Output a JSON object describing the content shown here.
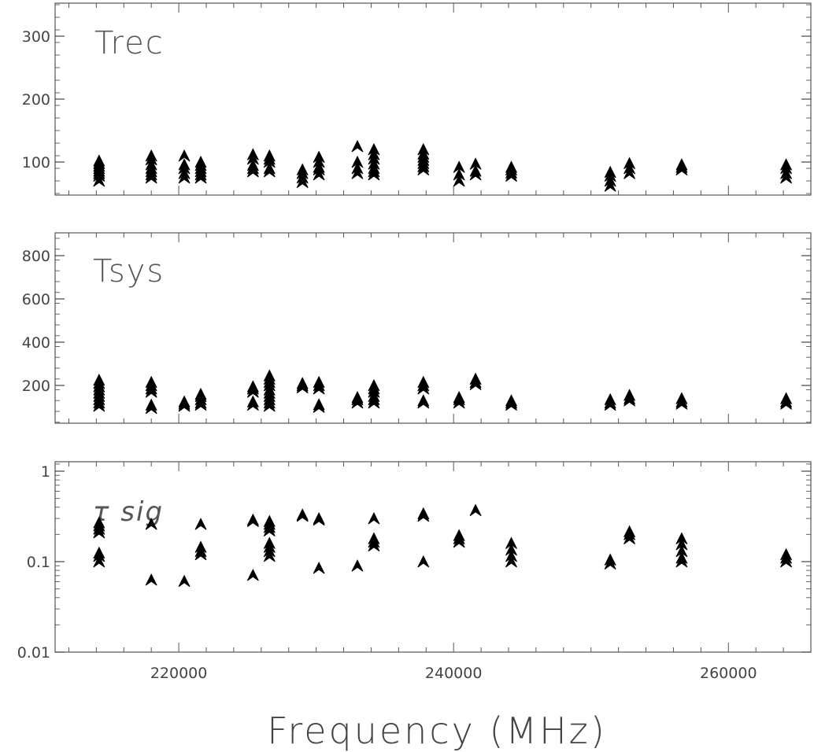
{
  "figure": {
    "xlabel": "Frequency (MHz)"
  },
  "chart_data": [
    {
      "type": "scatter",
      "title": "Trec",
      "xlabel": "Frequency (MHz)",
      "ylabel": "",
      "xlim": [
        211000,
        266000
      ],
      "ylim": [
        50,
        350
      ],
      "scale": "linear",
      "xticks": [
        220000,
        240000,
        260000
      ],
      "xtick_labels": [
        "220000",
        "240000",
        "260000"
      ],
      "yticks": [
        100,
        200,
        300
      ],
      "ytick_labels": [
        "100",
        "200",
        "300"
      ],
      "grid": false,
      "points": [
        [
          214200,
          70
        ],
        [
          214200,
          78
        ],
        [
          214200,
          82
        ],
        [
          214200,
          86
        ],
        [
          214200,
          90
        ],
        [
          214200,
          94
        ],
        [
          214200,
          98
        ],
        [
          214200,
          102
        ],
        [
          218000,
          75
        ],
        [
          218000,
          80
        ],
        [
          218000,
          85
        ],
        [
          218000,
          90
        ],
        [
          218000,
          96
        ],
        [
          218000,
          104
        ],
        [
          218000,
          110
        ],
        [
          220400,
          75
        ],
        [
          220400,
          82
        ],
        [
          220400,
          90
        ],
        [
          220400,
          96
        ],
        [
          220400,
          110
        ],
        [
          221600,
          75
        ],
        [
          221600,
          80
        ],
        [
          221600,
          85
        ],
        [
          221600,
          90
        ],
        [
          221600,
          95
        ],
        [
          221600,
          100
        ],
        [
          225400,
          85
        ],
        [
          225400,
          90
        ],
        [
          225400,
          95
        ],
        [
          225400,
          105
        ],
        [
          225400,
          112
        ],
        [
          226600,
          85
        ],
        [
          226600,
          90
        ],
        [
          226600,
          100
        ],
        [
          226600,
          105
        ],
        [
          226600,
          110
        ],
        [
          229000,
          68
        ],
        [
          229000,
          75
        ],
        [
          229000,
          82
        ],
        [
          229000,
          88
        ],
        [
          230200,
          80
        ],
        [
          230200,
          88
        ],
        [
          230200,
          92
        ],
        [
          230200,
          100
        ],
        [
          230200,
          108
        ],
        [
          233000,
          82
        ],
        [
          233000,
          90
        ],
        [
          233000,
          100
        ],
        [
          233000,
          125
        ],
        [
          234200,
          80
        ],
        [
          234200,
          85
        ],
        [
          234200,
          90
        ],
        [
          234200,
          97
        ],
        [
          234200,
          105
        ],
        [
          234200,
          112
        ],
        [
          234200,
          120
        ],
        [
          237800,
          88
        ],
        [
          237800,
          93
        ],
        [
          237800,
          98
        ],
        [
          237800,
          103
        ],
        [
          237800,
          108
        ],
        [
          237800,
          113
        ],
        [
          237800,
          120
        ],
        [
          240400,
          70
        ],
        [
          240400,
          80
        ],
        [
          240400,
          92
        ],
        [
          241600,
          80
        ],
        [
          241600,
          86
        ],
        [
          241600,
          97
        ],
        [
          244200,
          78
        ],
        [
          244200,
          83
        ],
        [
          244200,
          88
        ],
        [
          244200,
          92
        ],
        [
          251400,
          62
        ],
        [
          251400,
          70
        ],
        [
          251400,
          78
        ],
        [
          251400,
          84
        ],
        [
          252800,
          82
        ],
        [
          252800,
          90
        ],
        [
          252800,
          98
        ],
        [
          256600,
          88
        ],
        [
          256600,
          92
        ],
        [
          256600,
          96
        ],
        [
          264200,
          75
        ],
        [
          264200,
          82
        ],
        [
          264200,
          90
        ],
        [
          264200,
          96
        ]
      ]
    },
    {
      "type": "scatter",
      "title": "Tsys",
      "xlabel": "Frequency (MHz)",
      "ylabel": "",
      "xlim": [
        211000,
        266000
      ],
      "ylim": [
        30,
        900
      ],
      "scale": "linear",
      "xticks": [
        220000,
        240000,
        260000
      ],
      "xtick_labels": [
        "220000",
        "240000",
        "260000"
      ],
      "yticks": [
        200,
        400,
        600,
        800
      ],
      "ytick_labels": [
        "200",
        "400",
        "600",
        "800"
      ],
      "grid": false,
      "points": [
        [
          214200,
          105
        ],
        [
          214200,
          120
        ],
        [
          214200,
          135
        ],
        [
          214200,
          150
        ],
        [
          214200,
          165
        ],
        [
          214200,
          180
        ],
        [
          214200,
          195
        ],
        [
          214200,
          210
        ],
        [
          214200,
          225
        ],
        [
          218000,
          95
        ],
        [
          218000,
          110
        ],
        [
          218000,
          170
        ],
        [
          218000,
          185
        ],
        [
          218000,
          200
        ],
        [
          218000,
          215
        ],
        [
          220400,
          105
        ],
        [
          220400,
          115
        ],
        [
          220400,
          125
        ],
        [
          221600,
          110
        ],
        [
          221600,
          120
        ],
        [
          221600,
          135
        ],
        [
          221600,
          150
        ],
        [
          221600,
          160
        ],
        [
          225400,
          110
        ],
        [
          225400,
          125
        ],
        [
          225400,
          170
        ],
        [
          225400,
          185
        ],
        [
          225400,
          195
        ],
        [
          226600,
          105
        ],
        [
          226600,
          120
        ],
        [
          226600,
          135
        ],
        [
          226600,
          150
        ],
        [
          226600,
          165
        ],
        [
          226600,
          180
        ],
        [
          226600,
          200
        ],
        [
          226600,
          215
        ],
        [
          226600,
          230
        ],
        [
          226600,
          245
        ],
        [
          229000,
          190
        ],
        [
          229000,
          200
        ],
        [
          229000,
          210
        ],
        [
          230200,
          100
        ],
        [
          230200,
          112
        ],
        [
          230200,
          185
        ],
        [
          230200,
          200
        ],
        [
          230200,
          215
        ],
        [
          233000,
          120
        ],
        [
          233000,
          135
        ],
        [
          233000,
          145
        ],
        [
          234200,
          120
        ],
        [
          234200,
          135
        ],
        [
          234200,
          150
        ],
        [
          234200,
          170
        ],
        [
          234200,
          185
        ],
        [
          234200,
          200
        ],
        [
          237800,
          120
        ],
        [
          237800,
          130
        ],
        [
          237800,
          185
        ],
        [
          237800,
          200
        ],
        [
          237800,
          215
        ],
        [
          240400,
          120
        ],
        [
          240400,
          135
        ],
        [
          240400,
          145
        ],
        [
          241600,
          205
        ],
        [
          241600,
          215
        ],
        [
          241600,
          230
        ],
        [
          244200,
          110
        ],
        [
          244200,
          120
        ],
        [
          244200,
          130
        ],
        [
          251400,
          110
        ],
        [
          251400,
          120
        ],
        [
          251400,
          135
        ],
        [
          252800,
          130
        ],
        [
          252800,
          140
        ],
        [
          252800,
          155
        ],
        [
          256600,
          115
        ],
        [
          256600,
          125
        ],
        [
          256600,
          140
        ],
        [
          264200,
          115
        ],
        [
          264200,
          125
        ],
        [
          264200,
          140
        ]
      ]
    },
    {
      "type": "scatter",
      "title": "τ sig",
      "xlabel": "Frequency (MHz)",
      "ylabel": "",
      "xlim": [
        211000,
        266000
      ],
      "ylim": [
        0.01,
        1.3
      ],
      "scale": "log",
      "xticks": [
        220000,
        240000,
        260000
      ],
      "xtick_labels": [
        "220000",
        "240000",
        "260000"
      ],
      "yticks": [
        0.01,
        0.1,
        1
      ],
      "ytick_labels": [
        "0.01",
        "0.1",
        "1"
      ],
      "grid": false,
      "points": [
        [
          214200,
          0.1
        ],
        [
          214200,
          0.115
        ],
        [
          214200,
          0.125
        ],
        [
          214200,
          0.21
        ],
        [
          214200,
          0.23
        ],
        [
          214200,
          0.25
        ],
        [
          214200,
          0.27
        ],
        [
          218000,
          0.063
        ],
        [
          218000,
          0.26
        ],
        [
          220400,
          0.061
        ],
        [
          221600,
          0.12
        ],
        [
          221600,
          0.13
        ],
        [
          221600,
          0.145
        ],
        [
          221600,
          0.26
        ],
        [
          225400,
          0.071
        ],
        [
          225400,
          0.28
        ],
        [
          225400,
          0.29
        ],
        [
          226600,
          0.115
        ],
        [
          226600,
          0.13
        ],
        [
          226600,
          0.145
        ],
        [
          226600,
          0.16
        ],
        [
          226600,
          0.22
        ],
        [
          226600,
          0.24
        ],
        [
          226600,
          0.26
        ],
        [
          226600,
          0.28
        ],
        [
          229000,
          0.32
        ],
        [
          229000,
          0.33
        ],
        [
          230200,
          0.085
        ],
        [
          230200,
          0.29
        ],
        [
          230200,
          0.3
        ],
        [
          233000,
          0.09
        ],
        [
          234200,
          0.15
        ],
        [
          234200,
          0.165
        ],
        [
          234200,
          0.18
        ],
        [
          234200,
          0.3
        ],
        [
          237800,
          0.1
        ],
        [
          237800,
          0.32
        ],
        [
          237800,
          0.34
        ],
        [
          240400,
          0.165
        ],
        [
          240400,
          0.18
        ],
        [
          240400,
          0.195
        ],
        [
          241600,
          0.37
        ],
        [
          244200,
          0.1
        ],
        [
          244200,
          0.115
        ],
        [
          244200,
          0.135
        ],
        [
          244200,
          0.16
        ],
        [
          251400,
          0.095
        ],
        [
          251400,
          0.105
        ],
        [
          252800,
          0.18
        ],
        [
          252800,
          0.2
        ],
        [
          252800,
          0.215
        ],
        [
          256600,
          0.1
        ],
        [
          256600,
          0.11
        ],
        [
          256600,
          0.13
        ],
        [
          256600,
          0.155
        ],
        [
          256600,
          0.18
        ],
        [
          264200,
          0.1
        ],
        [
          264200,
          0.11
        ],
        [
          264200,
          0.12
        ]
      ]
    }
  ]
}
